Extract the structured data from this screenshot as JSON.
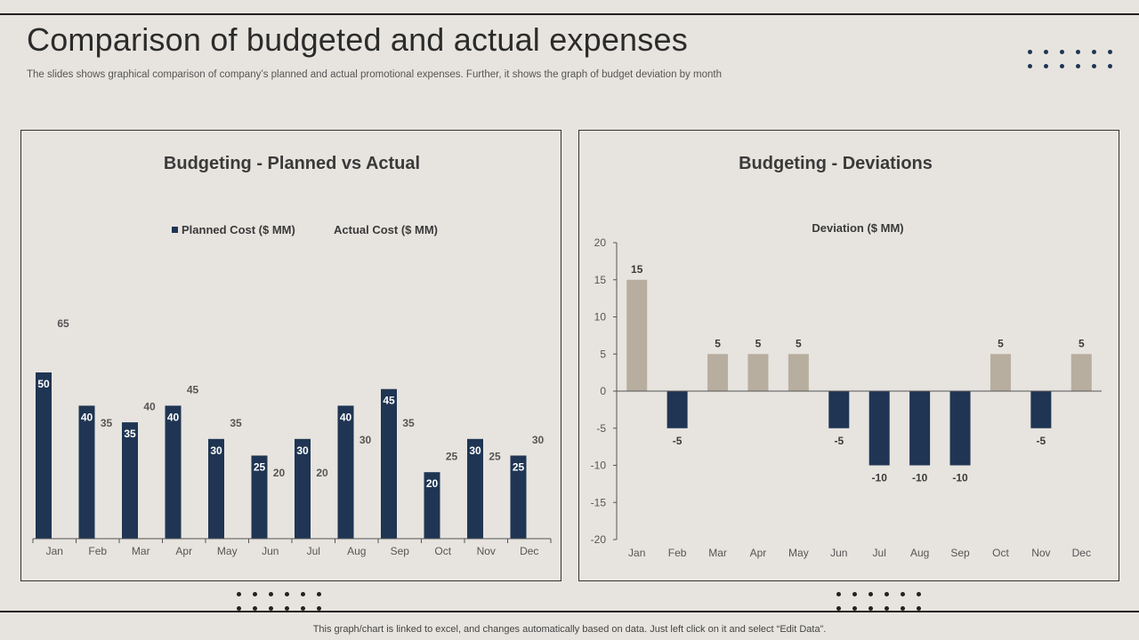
{
  "header": {
    "title": "Comparison of budgeted and actual expenses",
    "subtitle": "The slides shows graphical comparison of company’s planned and actual promotional expenses. Further, it shows the graph of budget deviation by month"
  },
  "footer": {
    "note": "This graph/chart is linked to excel,  and changes automatically based on data. Just left click on it and select “Edit Data”."
  },
  "colors": {
    "navy": "#1f3553",
    "tan": "#b8ae9f",
    "background": "#e7e4df"
  },
  "chart_data": [
    {
      "type": "bar",
      "title": "Budgeting - Planned vs Actual",
      "categories": [
        "Jan",
        "Feb",
        "Mar",
        "Apr",
        "May",
        "Jun",
        "Jul",
        "Aug",
        "Sep",
        "Oct",
        "Nov",
        "Dec"
      ],
      "series": [
        {
          "name": "Planned Cost ($ MM)",
          "color": "#1f3553",
          "values": [
            50,
            40,
            35,
            40,
            30,
            25,
            30,
            40,
            45,
            20,
            30,
            25
          ]
        },
        {
          "name": "Actual Cost ($ MM)",
          "color": "#e7e4df",
          "values": [
            65,
            35,
            40,
            45,
            35,
            20,
            20,
            30,
            35,
            25,
            25,
            30
          ]
        }
      ],
      "ylim": [
        0,
        100
      ],
      "xlabel": "",
      "ylabel": "",
      "legend": "top-center"
    },
    {
      "type": "bar",
      "title": "Budgeting - Deviations",
      "subtitle": "Deviation ($ MM)",
      "categories": [
        "Jan",
        "Feb",
        "Mar",
        "Apr",
        "May",
        "Jun",
        "Jul",
        "Aug",
        "Sep",
        "Oct",
        "Nov",
        "Dec"
      ],
      "values": [
        15,
        -5,
        5,
        5,
        5,
        -5,
        -10,
        -10,
        -10,
        5,
        -5,
        5
      ],
      "positive_color": "#b8ae9f",
      "negative_color": "#1f3553",
      "ylim": [
        -20,
        20
      ],
      "yticks": [
        20,
        15,
        10,
        5,
        0,
        -5,
        -10,
        -15,
        -20
      ],
      "xlabel": "",
      "ylabel": ""
    }
  ]
}
